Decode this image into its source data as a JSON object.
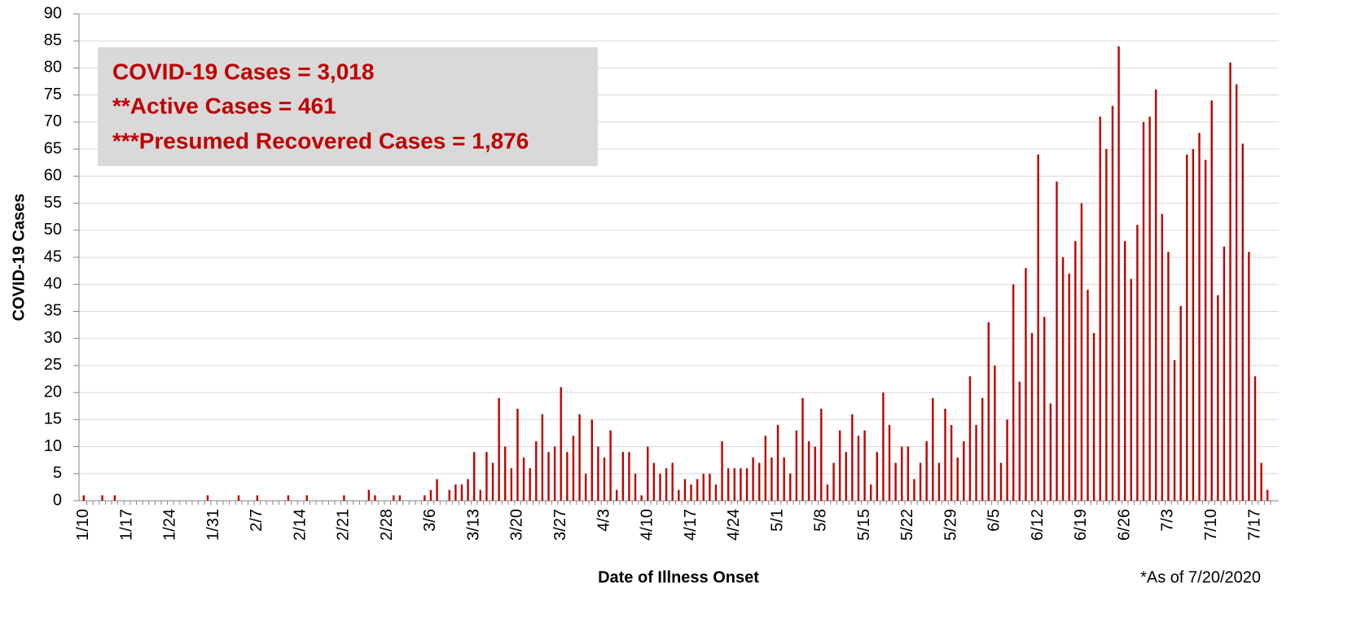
{
  "chart_data": {
    "type": "bar",
    "y_label": "COVID-19 Cases",
    "x_label": "Date of Illness Onset",
    "footnote": "*As of 7/20/2020",
    "annotations": [
      "COVID-19 Cases = 3,018",
      "**Active Cases = 461",
      "***Presumed Recovered Cases = 1,876"
    ],
    "color": "#c00000",
    "grid": true,
    "ylim": [
      0,
      90
    ],
    "yticks": [
      0,
      5,
      10,
      15,
      20,
      25,
      30,
      35,
      40,
      45,
      50,
      55,
      60,
      65,
      70,
      75,
      80,
      85,
      90
    ],
    "categories": [
      "1/10",
      null,
      null,
      null,
      null,
      null,
      null,
      "1/17",
      null,
      null,
      null,
      null,
      null,
      null,
      "1/24",
      null,
      null,
      null,
      null,
      null,
      null,
      "1/31",
      null,
      null,
      null,
      null,
      null,
      null,
      "2/7",
      null,
      null,
      null,
      null,
      null,
      null,
      "2/14",
      null,
      null,
      null,
      null,
      null,
      null,
      "2/21",
      null,
      null,
      null,
      null,
      null,
      null,
      "2/28",
      null,
      null,
      null,
      null,
      null,
      null,
      "3/6",
      null,
      null,
      null,
      null,
      null,
      null,
      "3/13",
      null,
      null,
      null,
      null,
      null,
      null,
      "3/20",
      null,
      null,
      null,
      null,
      null,
      null,
      "3/27",
      null,
      null,
      null,
      null,
      null,
      null,
      "4/3",
      null,
      null,
      null,
      null,
      null,
      null,
      "4/10",
      null,
      null,
      null,
      null,
      null,
      null,
      "4/17",
      null,
      null,
      null,
      null,
      null,
      null,
      "4/24",
      null,
      null,
      null,
      null,
      null,
      null,
      "5/1",
      null,
      null,
      null,
      null,
      null,
      null,
      "5/8",
      null,
      null,
      null,
      null,
      null,
      null,
      "5/15",
      null,
      null,
      null,
      null,
      null,
      null,
      "5/22",
      null,
      null,
      null,
      null,
      null,
      null,
      "5/29",
      null,
      null,
      null,
      null,
      null,
      null,
      "6/5",
      null,
      null,
      null,
      null,
      null,
      null,
      "6/12",
      null,
      null,
      null,
      null,
      null,
      null,
      "6/19",
      null,
      null,
      null,
      null,
      null,
      null,
      "6/26",
      null,
      null,
      null,
      null,
      null,
      null,
      "7/3",
      null,
      null,
      null,
      null,
      null,
      null,
      "7/10",
      null,
      null,
      null,
      null,
      null,
      null,
      "7/17",
      null,
      null
    ],
    "values": [
      1,
      0,
      0,
      1,
      0,
      1,
      0,
      0,
      0,
      0,
      0,
      0,
      0,
      0,
      0,
      0,
      0,
      0,
      0,
      0,
      1,
      0,
      0,
      0,
      0,
      1,
      0,
      0,
      1,
      0,
      0,
      0,
      0,
      1,
      0,
      0,
      1,
      0,
      0,
      0,
      0,
      0,
      1,
      0,
      0,
      0,
      2,
      1,
      0,
      0,
      1,
      1,
      0,
      0,
      0,
      1,
      2,
      4,
      0,
      2,
      3,
      3,
      4,
      9,
      2,
      9,
      7,
      19,
      10,
      6,
      17,
      8,
      6,
      11,
      16,
      9,
      10,
      21,
      9,
      12,
      16,
      5,
      15,
      10,
      8,
      13,
      2,
      9,
      9,
      5,
      1,
      10,
      7,
      5,
      6,
      7,
      2,
      4,
      3,
      4,
      5,
      5,
      3,
      11,
      6,
      6,
      6,
      6,
      8,
      7,
      12,
      8,
      14,
      8,
      5,
      13,
      19,
      11,
      10,
      17,
      3,
      7,
      13,
      9,
      16,
      12,
      13,
      3,
      9,
      20,
      14,
      7,
      10,
      10,
      4,
      7,
      11,
      19,
      7,
      17,
      14,
      8,
      11,
      23,
      14,
      19,
      33,
      25,
      7,
      15,
      40,
      22,
      43,
      31,
      64,
      34,
      18,
      59,
      45,
      42,
      48,
      55,
      39,
      31,
      71,
      65,
      73,
      84,
      48,
      41,
      51,
      70,
      71,
      76,
      53,
      46,
      26,
      36,
      64,
      65,
      68,
      63,
      74,
      38,
      47,
      81,
      77,
      66,
      46,
      23,
      7,
      2
    ]
  }
}
